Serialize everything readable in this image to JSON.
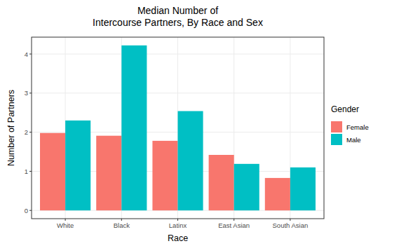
{
  "chart_data": {
    "type": "bar",
    "title": "Median Number of\nIntercourse Partners, By Race and Sex",
    "x_label": "Race",
    "y_label": "Number of Partners",
    "legend_title": "Gender",
    "categories": [
      "White",
      "Black",
      "Latinx",
      "East Asian",
      "South Asian"
    ],
    "series": [
      {
        "name": "Female",
        "color": "#F8766D",
        "values": [
          1.98,
          1.91,
          1.78,
          1.42,
          0.83
        ]
      },
      {
        "name": "Male",
        "color": "#00BFC4",
        "values": [
          2.3,
          4.22,
          2.54,
          1.19,
          1.1
        ]
      }
    ],
    "ylim": [
      -0.211,
      4.431
    ],
    "yticks": [
      0,
      1,
      2,
      3,
      4
    ],
    "grid": true,
    "legend": "right"
  }
}
